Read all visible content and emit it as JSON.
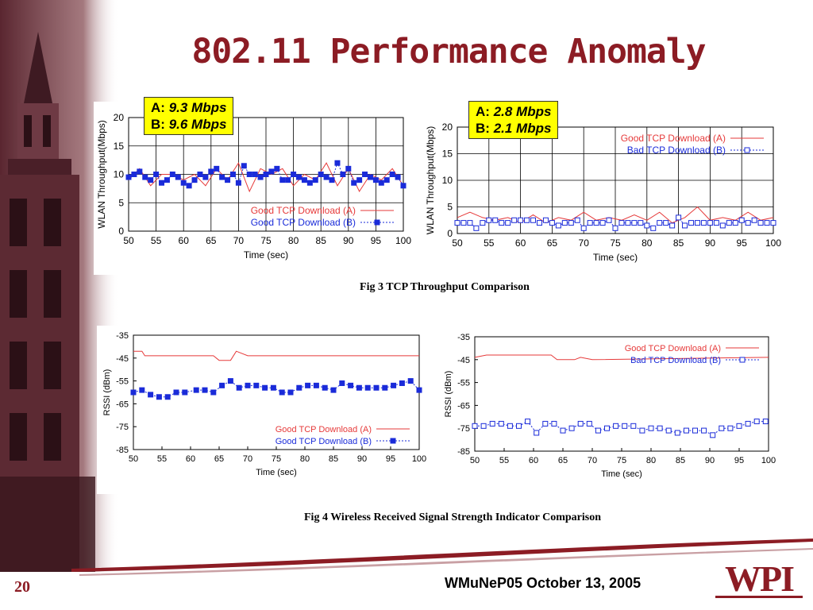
{
  "slide": {
    "title": "802.11 Performance Anomaly",
    "slide_number": "20",
    "footer": "WMuNeP05 October 13, 2005",
    "logo_text": "WPI",
    "fig3_caption": "Fig 3 TCP Throughput Comparison",
    "fig4_caption": "Fig 4 Wireless Received Signal Strength Indicator Comparison",
    "colors": {
      "title": "#8c1c24",
      "seriesA": "#e63a3a",
      "seriesB": "#1a2bd9",
      "note": "#ffff00"
    }
  },
  "notes": [
    {
      "a_label": "A:",
      "a_value": "9.3 Mbps",
      "b_label": "B:",
      "b_value": "9.6 Mbps"
    },
    {
      "a_label": "A:",
      "a_value": "2.8 Mbps",
      "b_label": "B:",
      "b_value": "2.1 Mbps"
    }
  ],
  "chart_data": [
    {
      "type": "line",
      "xlabel": "Time (sec)",
      "ylabel": "WLAN Throughput(Mbps)",
      "xlim": [
        50,
        100
      ],
      "ylim": [
        0,
        20
      ],
      "xticks": [
        50,
        55,
        60,
        65,
        70,
        75,
        80,
        85,
        90,
        95,
        100
      ],
      "yticks": [
        0,
        5,
        10,
        15,
        20
      ],
      "legend_position": "bottom-right",
      "grid": true,
      "series": [
        {
          "name": "Good TCP Download (A)",
          "marker": "none",
          "x": [
            50,
            52,
            54,
            56,
            58,
            60,
            62,
            64,
            66,
            68,
            70,
            72,
            74,
            76,
            78,
            80,
            82,
            84,
            86,
            88,
            90,
            92,
            94,
            96,
            98,
            100
          ],
          "y": [
            9,
            11,
            8,
            10,
            10,
            9,
            10,
            8,
            11,
            9,
            12,
            7,
            11,
            10,
            11,
            8,
            10,
            9,
            12,
            8,
            11,
            7,
            10,
            9,
            11,
            8
          ]
        },
        {
          "name": "Good TCP Download (B)",
          "marker": "filled-square",
          "x": [
            50,
            51,
            52,
            53,
            54,
            55,
            56,
            57,
            58,
            59,
            60,
            61,
            62,
            63,
            64,
            65,
            66,
            67,
            68,
            69,
            70,
            71,
            72,
            73,
            74,
            75,
            76,
            77,
            78,
            79,
            80,
            81,
            82,
            83,
            84,
            85,
            86,
            87,
            88,
            89,
            90,
            91,
            92,
            93,
            94,
            95,
            96,
            97,
            98,
            99,
            100
          ],
          "y": [
            9.5,
            10,
            10.5,
            9.5,
            9,
            10,
            8.5,
            9,
            10,
            9.5,
            8.5,
            8,
            9,
            10,
            9.5,
            10.5,
            11,
            9.5,
            9,
            10,
            8.5,
            11.5,
            10,
            10,
            9.5,
            10,
            10.5,
            11,
            9,
            9,
            10,
            9.5,
            9,
            8.5,
            9,
            10,
            9.5,
            9,
            12,
            10,
            11,
            8.5,
            9,
            10,
            9.5,
            9,
            8.5,
            9,
            10,
            9.5,
            8
          ]
        }
      ]
    },
    {
      "type": "line",
      "xlabel": "Time (sec)",
      "ylabel": "WLAN Throughput(Mbps)",
      "xlim": [
        50,
        100
      ],
      "ylim": [
        0,
        20
      ],
      "xticks": [
        50,
        55,
        60,
        65,
        70,
        75,
        80,
        85,
        90,
        95,
        100
      ],
      "yticks": [
        0,
        5,
        10,
        15,
        20
      ],
      "legend_position": "top-right",
      "grid": true,
      "series": [
        {
          "name": "Good TCP Download (A)",
          "marker": "none",
          "x": [
            50,
            52,
            54,
            56,
            58,
            60,
            62,
            64,
            66,
            68,
            70,
            72,
            74,
            76,
            78,
            80,
            82,
            84,
            86,
            88,
            90,
            92,
            94,
            96,
            98,
            100
          ],
          "y": [
            3,
            4,
            3,
            2.5,
            3,
            2,
            3.5,
            2,
            3,
            2.5,
            4,
            2.5,
            3,
            2.5,
            3.5,
            2.5,
            4,
            2,
            3,
            5,
            2.5,
            3,
            2.5,
            4,
            2.5,
            3
          ]
        },
        {
          "name": "Bad TCP Download (B)",
          "marker": "open-square",
          "x": [
            50,
            51,
            52,
            53,
            54,
            55,
            56,
            57,
            58,
            59,
            60,
            61,
            62,
            63,
            64,
            65,
            66,
            67,
            68,
            69,
            70,
            71,
            72,
            73,
            74,
            75,
            76,
            77,
            78,
            79,
            80,
            81,
            82,
            83,
            84,
            85,
            86,
            87,
            88,
            89,
            90,
            91,
            92,
            93,
            94,
            95,
            96,
            97,
            98,
            99,
            100
          ],
          "y": [
            2,
            2,
            2,
            1,
            2,
            2.5,
            2.5,
            2,
            2,
            2.5,
            2.5,
            2.5,
            2.5,
            2,
            2.5,
            2,
            1.5,
            2,
            2,
            2.5,
            1,
            2,
            2,
            2,
            2.5,
            1,
            2,
            2,
            2,
            2,
            1.5,
            1,
            2,
            2,
            1.5,
            3,
            1.5,
            2,
            2,
            2,
            2,
            2,
            1.5,
            2,
            2,
            2.5,
            2,
            2.5,
            2,
            2,
            2
          ]
        }
      ]
    },
    {
      "type": "line",
      "xlabel": "Time (sec)",
      "ylabel": "RSSI (dBm)",
      "xlim": [
        50,
        100
      ],
      "ylim": [
        -85,
        -35
      ],
      "xticks": [
        50,
        55,
        60,
        65,
        70,
        75,
        80,
        85,
        90,
        95,
        100
      ],
      "yticks": [
        -35,
        -45,
        -55,
        -65,
        -75,
        -85
      ],
      "legend_position": "bottom-right",
      "grid": false,
      "series": [
        {
          "name": "Good TCP Download (A)",
          "marker": "none",
          "x": [
            50,
            51.5,
            52,
            64,
            65,
            67,
            68,
            70,
            100
          ],
          "y": [
            -42,
            -42,
            -44,
            -44,
            -46,
            -46,
            -42,
            -44,
            -44
          ]
        },
        {
          "name": "Good TCP Download (B)",
          "marker": "filled-square",
          "x": [
            50,
            51.5,
            53,
            54.5,
            56,
            57.5,
            59,
            61,
            62.5,
            64,
            65.5,
            67,
            68.5,
            70,
            71.5,
            73,
            74.5,
            76,
            77.5,
            79,
            80.5,
            82,
            83.5,
            85,
            86.5,
            88,
            89.5,
            91,
            92.5,
            94,
            95.5,
            97,
            98.5,
            100
          ],
          "y": [
            -60,
            -59,
            -61,
            -62,
            -62,
            -60,
            -60,
            -59,
            -59,
            -60,
            -57,
            -55,
            -58,
            -57,
            -57,
            -58,
            -58,
            -60,
            -60,
            -58,
            -57,
            -57,
            -58,
            -59,
            -56,
            -57,
            -58,
            -58,
            -58,
            -58,
            -57,
            -56,
            -55,
            -59
          ]
        }
      ]
    },
    {
      "type": "line",
      "xlabel": "Time (sec)",
      "ylabel": "RSSI (dBm)",
      "xlim": [
        50,
        100
      ],
      "ylim": [
        -85,
        -35
      ],
      "xticks": [
        50,
        55,
        60,
        65,
        70,
        75,
        80,
        85,
        90,
        95,
        100
      ],
      "yticks": [
        -35,
        -45,
        -55,
        -65,
        -75,
        -85
      ],
      "legend_position": "top-right",
      "grid": false,
      "series": [
        {
          "name": "Good TCP Download (A)",
          "marker": "none",
          "x": [
            50,
            52,
            63,
            64,
            67,
            68,
            70,
            100
          ],
          "y": [
            -44,
            -43,
            -43,
            -45,
            -45,
            -44,
            -45,
            -44
          ]
        },
        {
          "name": "Bad TCP Download (B)",
          "marker": "open-square",
          "x": [
            50,
            51.5,
            53,
            54.5,
            56,
            57.5,
            59,
            60.5,
            62,
            63.5,
            65,
            66.5,
            68,
            69.5,
            71,
            72.5,
            74,
            75.5,
            77,
            78.5,
            80,
            81.5,
            83,
            84.5,
            86,
            87.5,
            89,
            90.5,
            92,
            93.5,
            95,
            96.5,
            98,
            99.5
          ],
          "y": [
            -74,
            -74,
            -73,
            -73,
            -74,
            -74,
            -72,
            -77,
            -73,
            -73,
            -76,
            -75,
            -73,
            -73,
            -76,
            -75,
            -74,
            -74,
            -74,
            -76,
            -75,
            -75,
            -76,
            -77,
            -76,
            -76,
            -76,
            -78,
            -75,
            -75,
            -74,
            -73,
            -72,
            -72
          ]
        }
      ]
    }
  ]
}
